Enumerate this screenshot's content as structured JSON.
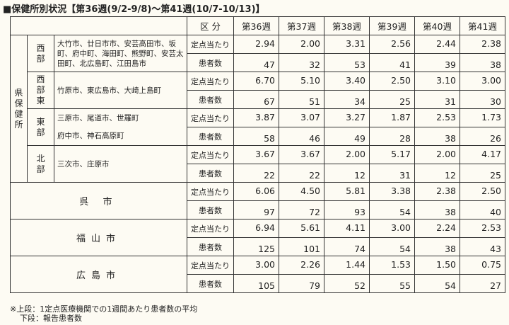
{
  "title": "■保健所別状況【第36週(9/2-9/8)～第41週(10/7-10/13)】",
  "header": {
    "kubun": "区 分",
    "weeks": [
      "第36週",
      "第37週",
      "第38週",
      "第39週",
      "第40週",
      "第41週"
    ]
  },
  "row_labels": {
    "rate": "定点当たり",
    "count": "患者数"
  },
  "pref_label": "県保健所",
  "groups": [
    {
      "name": "西部",
      "areas": "大竹市、廿日市市、安芸高田市、坂町、府中町、海田町、熊野町、安芸太田町、北広島町、江田島市",
      "rate": [
        "2.94",
        "2.00",
        "3.31",
        "2.56",
        "2.44",
        "2.38"
      ],
      "count": [
        "47",
        "32",
        "53",
        "41",
        "39",
        "38"
      ]
    },
    {
      "name": "西部東",
      "areas": "竹原市、東広島市、大崎上島町",
      "rate": [
        "6.70",
        "5.10",
        "3.40",
        "2.50",
        "3.10",
        "3.00"
      ],
      "count": [
        "67",
        "51",
        "34",
        "25",
        "31",
        "30"
      ]
    },
    {
      "name": "東部",
      "areas1": "三原市、尾道市、世羅町",
      "areas2": "府中市、神石高原町",
      "rate": [
        "3.87",
        "3.07",
        "3.27",
        "1.87",
        "2.53",
        "1.73"
      ],
      "count": [
        "58",
        "46",
        "49",
        "28",
        "38",
        "26"
      ]
    },
    {
      "name": "北部",
      "areas": "三次市、庄原市",
      "rate": [
        "3.67",
        "3.67",
        "2.00",
        "5.17",
        "2.00",
        "4.17"
      ],
      "count": [
        "22",
        "22",
        "12",
        "31",
        "12",
        "25"
      ]
    }
  ],
  "cities": [
    {
      "name": "呉 市",
      "rate": [
        "6.06",
        "4.50",
        "5.81",
        "3.38",
        "2.38",
        "2.50"
      ],
      "count": [
        "97",
        "72",
        "93",
        "54",
        "38",
        "40"
      ]
    },
    {
      "name": "福山市",
      "rate": [
        "6.94",
        "5.61",
        "4.11",
        "3.00",
        "2.24",
        "2.53"
      ],
      "count": [
        "125",
        "101",
        "74",
        "54",
        "38",
        "43"
      ]
    },
    {
      "name": "広島市",
      "rate": [
        "3.00",
        "2.26",
        "1.44",
        "1.53",
        "1.50",
        "0.75"
      ],
      "count": [
        "105",
        "79",
        "52",
        "55",
        "54",
        "27"
      ]
    }
  ],
  "footnote": {
    "line1": "※上段：1定点医療機関での1週間あたり患者数の平均",
    "line2": "下段：報告患者数"
  }
}
